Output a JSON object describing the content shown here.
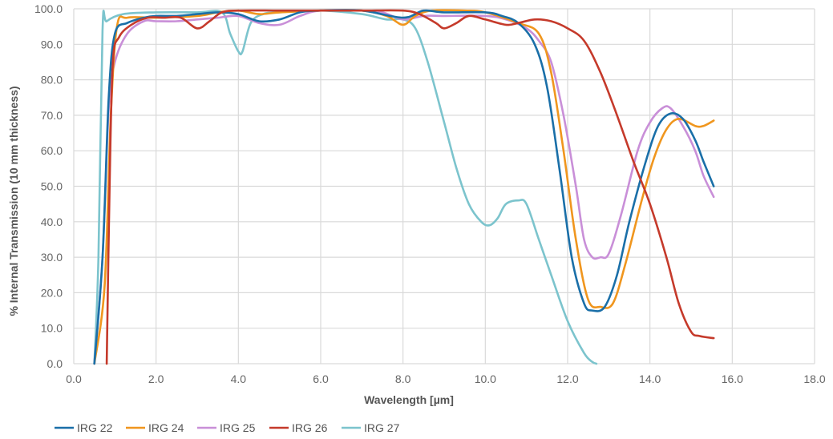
{
  "chart_data": {
    "type": "line",
    "title": "",
    "xlabel": "Wavelength [µm]",
    "ylabel": "% Internal Transmission (10 mm thickness)",
    "xlim": [
      0,
      18
    ],
    "ylim": [
      0,
      100
    ],
    "x_ticks": [
      "0.0",
      "2.0",
      "4.0",
      "6.0",
      "8.0",
      "10.0",
      "12.0",
      "14.0",
      "16.0",
      "18.0"
    ],
    "y_ticks": [
      "0.0",
      "10.0",
      "20.0",
      "30.0",
      "40.0",
      "50.0",
      "60.0",
      "70.0",
      "80.0",
      "90.0",
      "100.0"
    ],
    "grid": true,
    "legend_position": "bottom-left",
    "series": [
      {
        "name": "IRG 22",
        "color": "#1a6fa8",
        "points": [
          [
            0.5,
            0
          ],
          [
            0.7,
            30
          ],
          [
            0.85,
            75
          ],
          [
            1.0,
            93
          ],
          [
            1.3,
            96
          ],
          [
            1.7,
            97.5
          ],
          [
            2.0,
            98
          ],
          [
            2.5,
            98
          ],
          [
            3.0,
            98.5
          ],
          [
            3.5,
            99
          ],
          [
            4.0,
            98.5
          ],
          [
            4.5,
            96.5
          ],
          [
            5.0,
            97
          ],
          [
            5.5,
            99
          ],
          [
            6.0,
            99.5
          ],
          [
            7.0,
            99.5
          ],
          [
            8.0,
            97.5
          ],
          [
            8.5,
            99.5
          ],
          [
            9.0,
            99
          ],
          [
            10.0,
            99
          ],
          [
            10.4,
            98
          ],
          [
            10.8,
            96
          ],
          [
            11.2,
            90
          ],
          [
            11.5,
            78
          ],
          [
            11.8,
            55
          ],
          [
            12.1,
            30
          ],
          [
            12.4,
            17
          ],
          [
            12.6,
            15
          ],
          [
            12.9,
            16
          ],
          [
            13.2,
            25
          ],
          [
            13.5,
            40
          ],
          [
            13.9,
            57
          ],
          [
            14.2,
            67
          ],
          [
            14.5,
            70.5
          ],
          [
            14.8,
            69
          ],
          [
            15.1,
            63
          ],
          [
            15.3,
            57
          ],
          [
            15.55,
            50
          ]
        ]
      },
      {
        "name": "IRG 24",
        "color": "#f0961e",
        "points": [
          [
            0.5,
            0
          ],
          [
            0.75,
            22
          ],
          [
            0.9,
            70
          ],
          [
            1.05,
            95
          ],
          [
            1.3,
            97.5
          ],
          [
            2.0,
            97.5
          ],
          [
            3.0,
            98
          ],
          [
            3.5,
            99
          ],
          [
            4.0,
            99.5
          ],
          [
            4.5,
            98.5
          ],
          [
            5.0,
            99
          ],
          [
            6.0,
            99.5
          ],
          [
            7.0,
            99.5
          ],
          [
            7.6,
            98
          ],
          [
            8.0,
            95.5
          ],
          [
            8.3,
            98
          ],
          [
            8.7,
            99.5
          ],
          [
            9.5,
            99.5
          ],
          [
            10.0,
            99
          ],
          [
            10.8,
            96
          ],
          [
            11.3,
            93
          ],
          [
            11.6,
            82
          ],
          [
            11.9,
            60
          ],
          [
            12.2,
            35
          ],
          [
            12.5,
            18
          ],
          [
            12.8,
            16
          ],
          [
            13.1,
            17
          ],
          [
            13.4,
            28
          ],
          [
            13.8,
            46
          ],
          [
            14.1,
            58
          ],
          [
            14.4,
            66
          ],
          [
            14.7,
            69
          ],
          [
            15.1,
            67
          ],
          [
            15.3,
            67
          ],
          [
            15.55,
            68.5
          ]
        ]
      },
      {
        "name": "IRG 25",
        "color": "#c98fd8",
        "points": [
          [
            0.5,
            0
          ],
          [
            0.7,
            30
          ],
          [
            0.85,
            72
          ],
          [
            1.0,
            85
          ],
          [
            1.3,
            93
          ],
          [
            1.7,
            96.5
          ],
          [
            2.0,
            96.5
          ],
          [
            2.5,
            96.5
          ],
          [
            3.0,
            97
          ],
          [
            3.5,
            97.5
          ],
          [
            4.0,
            98
          ],
          [
            4.5,
            96
          ],
          [
            5.0,
            95.5
          ],
          [
            5.5,
            98
          ],
          [
            6.0,
            99.5
          ],
          [
            7.0,
            99.5
          ],
          [
            7.5,
            99
          ],
          [
            8.0,
            97
          ],
          [
            8.5,
            98
          ],
          [
            9.0,
            98
          ],
          [
            10.0,
            98
          ],
          [
            10.5,
            97
          ],
          [
            11.0,
            94.5
          ],
          [
            11.3,
            91
          ],
          [
            11.6,
            85
          ],
          [
            11.9,
            70
          ],
          [
            12.2,
            50
          ],
          [
            12.4,
            35
          ],
          [
            12.6,
            30
          ],
          [
            12.8,
            30
          ],
          [
            13.0,
            31
          ],
          [
            13.3,
            42
          ],
          [
            13.7,
            60
          ],
          [
            14.0,
            68
          ],
          [
            14.3,
            72
          ],
          [
            14.5,
            72
          ],
          [
            14.8,
            67
          ],
          [
            15.1,
            60
          ],
          [
            15.3,
            53
          ],
          [
            15.55,
            47
          ]
        ]
      },
      {
        "name": "IRG 26",
        "color": "#c53a2b",
        "points": [
          [
            0.8,
            0
          ],
          [
            0.87,
            50
          ],
          [
            0.95,
            85
          ],
          [
            1.1,
            92
          ],
          [
            1.4,
            95.5
          ],
          [
            1.8,
            97.5
          ],
          [
            2.2,
            97.5
          ],
          [
            2.6,
            97.5
          ],
          [
            3.0,
            94.5
          ],
          [
            3.3,
            96.5
          ],
          [
            3.6,
            99
          ],
          [
            4.0,
            99.5
          ],
          [
            5.0,
            99.5
          ],
          [
            6.0,
            99.5
          ],
          [
            7.0,
            99.5
          ],
          [
            8.0,
            99.5
          ],
          [
            8.4,
            98.5
          ],
          [
            8.8,
            96
          ],
          [
            9.0,
            94.5
          ],
          [
            9.3,
            96
          ],
          [
            9.6,
            98
          ],
          [
            10.0,
            97
          ],
          [
            10.5,
            95.5
          ],
          [
            10.8,
            96
          ],
          [
            11.2,
            97
          ],
          [
            11.6,
            96.5
          ],
          [
            12.0,
            94.5
          ],
          [
            12.4,
            91
          ],
          [
            12.8,
            82
          ],
          [
            13.2,
            70
          ],
          [
            13.6,
            57
          ],
          [
            14.0,
            45
          ],
          [
            14.4,
            30
          ],
          [
            14.7,
            17
          ],
          [
            15.0,
            9
          ],
          [
            15.2,
            7.8
          ],
          [
            15.55,
            7.2
          ]
        ]
      },
      {
        "name": "IRG 27",
        "color": "#7cc4cd",
        "points": [
          [
            0.5,
            0
          ],
          [
            0.6,
            30
          ],
          [
            0.7,
            94
          ],
          [
            0.8,
            96.5
          ],
          [
            1.2,
            98.5
          ],
          [
            2.0,
            99
          ],
          [
            3.0,
            99
          ],
          [
            3.6,
            99
          ],
          [
            3.8,
            93
          ],
          [
            4.0,
            88
          ],
          [
            4.1,
            88
          ],
          [
            4.3,
            96
          ],
          [
            4.6,
            98.5
          ],
          [
            5.0,
            99
          ],
          [
            6.0,
            99.5
          ],
          [
            7.0,
            98.5
          ],
          [
            7.6,
            97
          ],
          [
            8.0,
            97
          ],
          [
            8.3,
            94.5
          ],
          [
            8.6,
            85
          ],
          [
            9.0,
            68
          ],
          [
            9.3,
            55
          ],
          [
            9.6,
            45
          ],
          [
            9.9,
            40
          ],
          [
            10.1,
            39
          ],
          [
            10.3,
            41
          ],
          [
            10.5,
            45
          ],
          [
            10.8,
            46
          ],
          [
            11.0,
            45
          ],
          [
            11.3,
            35
          ],
          [
            11.6,
            25
          ],
          [
            12.0,
            12
          ],
          [
            12.4,
            3
          ],
          [
            12.6,
            0.5
          ],
          [
            12.7,
            0
          ]
        ]
      }
    ]
  }
}
